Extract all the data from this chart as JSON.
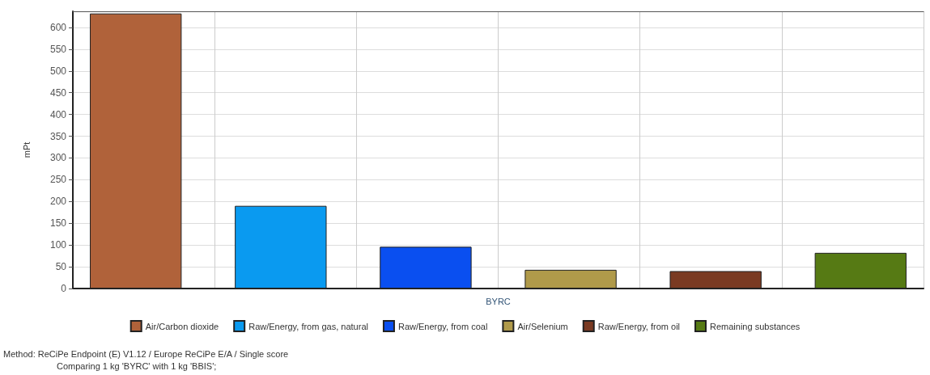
{
  "chart_data": {
    "type": "bar",
    "ylabel": "mPt",
    "categories": [
      "BYRC"
    ],
    "series": [
      {
        "name": "Air/Carbon dioxide",
        "color": "#b0623a",
        "values": [
          632
        ]
      },
      {
        "name": "Raw/Energy, from gas, natural",
        "color": "#0a9af0",
        "values": [
          190
        ]
      },
      {
        "name": "Raw/Energy, from coal",
        "color": "#0a4ff0",
        "values": [
          96
        ]
      },
      {
        "name": "Air/Selenium",
        "color": "#b09a4a",
        "values": [
          43
        ]
      },
      {
        "name": "Raw/Energy, from oil",
        "color": "#7a3a22",
        "values": [
          40
        ]
      },
      {
        "name": "Remaining substances",
        "color": "#567a14",
        "values": [
          82
        ]
      }
    ],
    "ylim": [
      0,
      637
    ],
    "yticks": [
      0,
      50,
      100,
      150,
      200,
      250,
      300,
      350,
      400,
      450,
      500,
      550,
      600
    ],
    "grid": true,
    "legend": "bottom",
    "annotations": [
      "Method: ReCiPe Endpoint (E) V1.12 / Europe ReCiPe E/A / Single score",
      "Comparing 1 kg 'BYRC' with 1 kg 'BBIS';"
    ]
  }
}
